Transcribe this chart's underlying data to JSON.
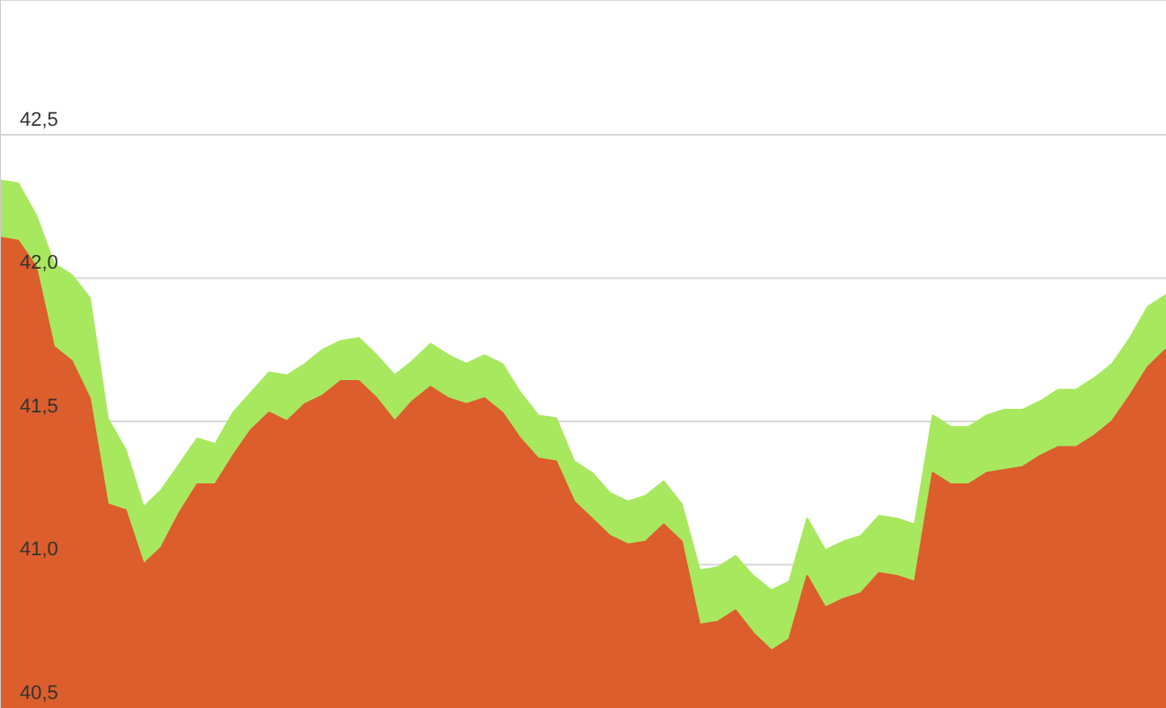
{
  "chart_data": {
    "type": "area",
    "categories": [
      null,
      null,
      null,
      null,
      null,
      null,
      null,
      null,
      null,
      null,
      null,
      null,
      null,
      null,
      null,
      null,
      null,
      null,
      null,
      null,
      null,
      null,
      null,
      null,
      null,
      null,
      null,
      null,
      null,
      null,
      null,
      null,
      null,
      null,
      null,
      null,
      null,
      null,
      null,
      null,
      null,
      null,
      null,
      null,
      null,
      null,
      null,
      null,
      null,
      null,
      null,
      null,
      null,
      null,
      null,
      null,
      null,
      null,
      null,
      null,
      null,
      null,
      null,
      null,
      null,
      null
    ],
    "series": [
      {
        "color": "#a8e85f",
        "values": [
          42.34,
          42.33,
          42.22,
          42.05,
          42.01,
          41.93,
          41.51,
          41.4,
          41.2,
          41.26,
          41.35,
          41.44,
          41.42,
          41.53,
          41.6,
          41.67,
          41.66,
          41.7,
          41.75,
          41.78,
          41.79,
          41.73,
          41.66,
          41.71,
          41.77,
          41.73,
          41.7,
          41.73,
          41.7,
          41.6,
          41.52,
          41.51,
          41.36,
          41.32,
          41.25,
          41.22,
          41.24,
          41.29,
          41.21,
          40.98,
          40.99,
          41.03,
          40.96,
          40.91,
          40.94,
          41.16,
          41.05,
          41.08,
          41.1,
          41.17,
          41.16,
          41.14,
          41.52,
          41.48,
          41.48,
          41.52,
          41.54,
          41.54,
          41.57,
          41.61,
          41.61,
          41.65,
          41.7,
          41.79,
          41.9,
          41.94
        ]
      },
      {
        "color": "#dc5e2c",
        "values": [
          42.14,
          42.13,
          42.04,
          41.76,
          41.71,
          41.58,
          41.21,
          41.19,
          41.0,
          41.06,
          41.18,
          41.28,
          41.28,
          41.38,
          41.47,
          41.53,
          41.5,
          41.56,
          41.59,
          41.64,
          41.64,
          41.58,
          41.5,
          41.57,
          41.62,
          41.58,
          41.56,
          41.58,
          41.53,
          41.44,
          41.37,
          41.36,
          41.22,
          41.16,
          41.1,
          41.07,
          41.08,
          41.14,
          41.08,
          40.79,
          40.8,
          40.84,
          40.76,
          40.7,
          40.74,
          40.96,
          40.85,
          40.88,
          40.9,
          40.97,
          40.96,
          40.94,
          41.32,
          41.28,
          41.28,
          41.32,
          41.33,
          41.34,
          41.38,
          41.41,
          41.41,
          41.45,
          41.5,
          41.59,
          41.69,
          41.75
        ]
      }
    ],
    "ylim": [
      40.5,
      42.97
    ],
    "yticks": [
      {
        "value": 40.5,
        "label": "40,5"
      },
      {
        "value": 41,
        "label": "41,0"
      },
      {
        "value": 41.5,
        "label": "41,5"
      },
      {
        "value": 42,
        "label": "42,0"
      },
      {
        "value": 42.5,
        "label": "42,5"
      }
    ],
    "grid": "y",
    "legend": false
  }
}
